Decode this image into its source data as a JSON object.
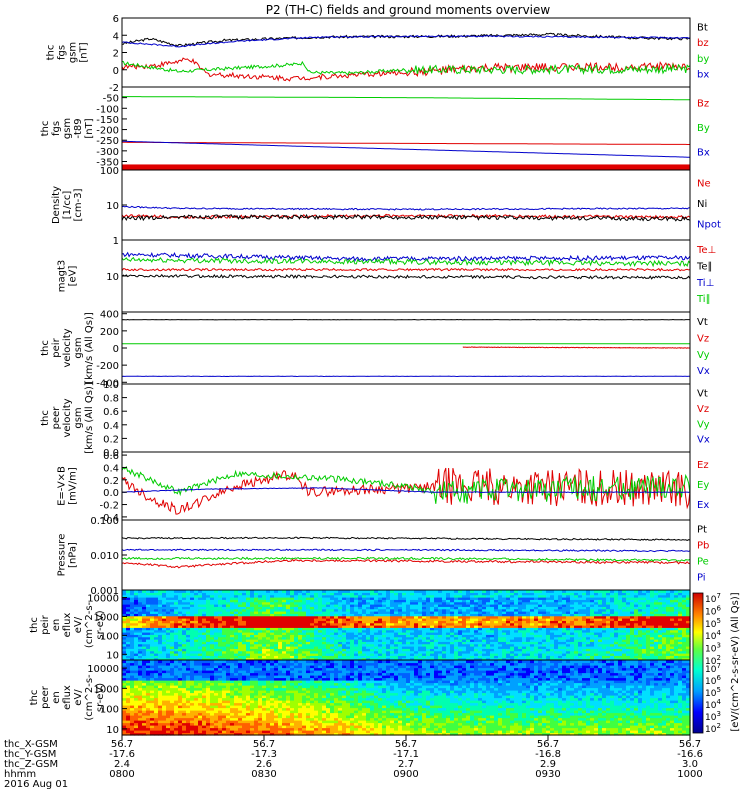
{
  "title": "P2 (TH-C) fields and ground moments overview",
  "colors": {
    "black": "#000000",
    "red": "#e00000",
    "green": "#00cc00",
    "blue": "#0000cc"
  },
  "chart_data": [
    {
      "type": "line",
      "panel": "fgs_gsm",
      "ylabel": [
        "thc",
        "fgs",
        "gsm",
        "[nT]"
      ],
      "yticks": [
        "6",
        "4",
        "2",
        "0",
        "-2"
      ],
      "ylim": [
        -2,
        6
      ],
      "series": [
        {
          "name": "Bt",
          "color": "black",
          "shape": [
            [
              0,
              3.0
            ],
            [
              0.05,
              3.6
            ],
            [
              0.1,
              2.8
            ],
            [
              0.18,
              3.4
            ],
            [
              0.35,
              3.8
            ],
            [
              0.6,
              3.9
            ],
            [
              0.75,
              4.1
            ],
            [
              0.9,
              3.7
            ],
            [
              1,
              3.6
            ]
          ],
          "noise": 0.15
        },
        {
          "name": "bz",
          "color": "red",
          "shape": [
            [
              0,
              0.3
            ],
            [
              0.06,
              0.5
            ],
            [
              0.12,
              1.2
            ],
            [
              0.15,
              -0.5
            ],
            [
              0.3,
              -1.0
            ],
            [
              0.5,
              -0.3
            ],
            [
              0.65,
              0.2
            ],
            [
              0.8,
              0.3
            ],
            [
              1,
              0.4
            ]
          ],
          "noise": 0.3,
          "noiseFrom": 0.5,
          "noiseAmp2": 0.5
        },
        {
          "name": "by",
          "color": "green",
          "shape": [
            [
              0,
              0.8
            ],
            [
              0.05,
              0.3
            ],
            [
              0.1,
              -0.2
            ],
            [
              0.2,
              0.2
            ],
            [
              0.3,
              0.6
            ],
            [
              0.32,
              0.8
            ],
            [
              0.33,
              -0.3
            ],
            [
              0.4,
              -0.4
            ],
            [
              0.5,
              0
            ],
            [
              1,
              0.1
            ]
          ],
          "noise": 0.2,
          "noiseFrom": 0.5,
          "noiseAmp2": 0.5
        },
        {
          "name": "bx",
          "color": "blue",
          "shape": [
            [
              0,
              3.2
            ],
            [
              0.1,
              2.7
            ],
            [
              0.2,
              3.3
            ],
            [
              0.35,
              3.8
            ],
            [
              0.6,
              3.9
            ],
            [
              1,
              3.7
            ]
          ],
          "noise": 0.08
        }
      ]
    },
    {
      "type": "line",
      "panel": "fgs_gsm_t89",
      "ylabel": [
        "thc",
        "fgs",
        "gsm",
        "-t89",
        "[nT]"
      ],
      "yticks": [
        "-50",
        "-100",
        "-150",
        "-200",
        "-250",
        "-300",
        "-350"
      ],
      "ylim": [
        -390,
        0
      ],
      "series": [
        {
          "name": "Bz",
          "color": "red",
          "shape": [
            [
              0,
              -260
            ],
            [
              1,
              -270
            ]
          ],
          "noise": 0
        },
        {
          "name": "By",
          "color": "green",
          "shape": [
            [
              0,
              -45
            ],
            [
              0.5,
              -50
            ],
            [
              1,
              -60
            ]
          ],
          "noise": 0
        },
        {
          "name": "Bx",
          "color": "blue",
          "shape": [
            [
              0,
              -255
            ],
            [
              0.4,
              -285
            ],
            [
              1,
              -330
            ]
          ],
          "noise": 0
        }
      ],
      "bar": {
        "color": "red",
        "y": -378
      }
    },
    {
      "type": "line",
      "panel": "density",
      "scale": "log",
      "ylabel": [
        "Density",
        "[1/cc]",
        "[cm-3]"
      ],
      "yticks": [
        "100",
        "10",
        "1"
      ],
      "ylim": [
        1,
        100
      ],
      "series": [
        {
          "name": "Ne",
          "color": "red",
          "shape": [
            [
              0,
              5
            ],
            [
              0.1,
              4.5
            ],
            [
              0.5,
              5
            ],
            [
              1,
              4.5
            ]
          ],
          "noise": 0.04
        },
        {
          "name": "Ni",
          "color": "black",
          "shape": [
            [
              0,
              4
            ],
            [
              0.1,
              4.6
            ],
            [
              0.5,
              4.5
            ],
            [
              1,
              4
            ]
          ],
          "noise": 0.06
        },
        {
          "name": "Npot",
          "color": "blue",
          "shape": [
            [
              0,
              9
            ],
            [
              0.1,
              8
            ],
            [
              0.5,
              7.5
            ],
            [
              1,
              8
            ]
          ],
          "noise": 0.02
        }
      ]
    },
    {
      "type": "line",
      "panel": "temperature",
      "scale": "log",
      "ylabel": [
        "magt3",
        "[eV]"
      ],
      "yticks": [
        "10"
      ],
      "ylim": [
        1,
        100
      ],
      "series": [
        {
          "name": "Te⊥",
          "color": "red",
          "shape": [
            [
              0,
              15
            ],
            [
              1,
              15
            ]
          ],
          "noise": 0.03
        },
        {
          "name": "Te∥",
          "color": "black",
          "shape": [
            [
              0,
              10
            ],
            [
              1,
              9
            ]
          ],
          "noise": 0.04
        },
        {
          "name": "Ti⊥",
          "color": "blue",
          "shape": [
            [
              0,
              40
            ],
            [
              0.4,
              30
            ],
            [
              1,
              32
            ]
          ],
          "noise": 0.06
        },
        {
          "name": "Ti∥",
          "color": "green",
          "shape": [
            [
              0,
              28
            ],
            [
              0.4,
              25
            ],
            [
              1,
              22
            ]
          ],
          "noise": 0.07
        }
      ]
    },
    {
      "type": "line",
      "panel": "peir_velocity",
      "ylabel": [
        "thc",
        "peir",
        "velocity",
        "gsm",
        "[km/s (All Qs)]"
      ],
      "yticks": [
        "400",
        "200",
        "0",
        "-200",
        "-400"
      ],
      "ylim": [
        -420,
        420
      ],
      "series": [
        {
          "name": "Vt",
          "color": "black",
          "shape": [
            [
              0,
              330
            ],
            [
              1,
              330
            ]
          ],
          "noise": 2
        },
        {
          "name": "Vz",
          "color": "red",
          "shape": [
            [
              0.6,
              10
            ],
            [
              1,
              0
            ]
          ],
          "noise": 3
        },
        {
          "name": "Vy",
          "color": "green",
          "shape": [
            [
              0,
              50
            ],
            [
              1,
              50
            ]
          ],
          "noise": 0
        },
        {
          "name": "Vx",
          "color": "blue",
          "shape": [
            [
              0,
              -330
            ],
            [
              1,
              -330
            ]
          ],
          "noise": 2
        }
      ]
    },
    {
      "type": "line",
      "panel": "peer_velocity",
      "ylabel": [
        "thc",
        "peer",
        "velocity",
        "gsm",
        "[km/s (All Qs)]"
      ],
      "yticks": [
        "1.0",
        "0.8",
        "0.6",
        "0.4",
        "0.2",
        "0.0"
      ],
      "ylim": [
        0,
        1
      ],
      "series": [
        {
          "name": "Vt",
          "color": "black"
        },
        {
          "name": "Vz",
          "color": "red"
        },
        {
          "name": "Vy",
          "color": "green"
        },
        {
          "name": "Vx",
          "color": "blue"
        }
      ]
    },
    {
      "type": "line",
      "panel": "efield",
      "ylabel": [
        "E=-V×B",
        "[mV/m]"
      ],
      "yticks": [
        "0.6",
        "0.4",
        "0.2",
        "0.0",
        "-0.2",
        "-0.4"
      ],
      "ylim": [
        -0.45,
        0.65
      ],
      "series": [
        {
          "name": "Ez",
          "color": "red",
          "shape": [
            [
              0,
              0.2
            ],
            [
              0.05,
              -0.1
            ],
            [
              0.1,
              -0.3
            ],
            [
              0.2,
              0.1
            ],
            [
              0.3,
              0.3
            ],
            [
              0.33,
              0.0
            ],
            [
              0.45,
              0.05
            ],
            [
              0.5,
              0.05
            ],
            [
              0.55,
              0.1
            ],
            [
              1,
              0.05
            ]
          ],
          "noise": 0.08,
          "noiseFrom": 0.55,
          "noiseAmp2": 0.3
        },
        {
          "name": "Ey",
          "color": "green",
          "shape": [
            [
              0,
              0.4
            ],
            [
              0.05,
              0.2
            ],
            [
              0.1,
              0.0
            ],
            [
              0.2,
              0.3
            ],
            [
              0.3,
              0.25
            ],
            [
              0.4,
              0.2
            ],
            [
              0.5,
              0.1
            ],
            [
              0.55,
              0.0
            ],
            [
              1,
              0.1
            ]
          ],
          "noise": 0.05,
          "noiseFrom": 0.55,
          "noiseAmp2": 0.2
        },
        {
          "name": "Ex",
          "color": "blue",
          "shape": [
            [
              0,
              0.0
            ],
            [
              0.15,
              0.05
            ],
            [
              0.35,
              0.07
            ],
            [
              0.55,
              0.0
            ],
            [
              1,
              0.0
            ]
          ],
          "noise": 0.005
        }
      ]
    },
    {
      "type": "line",
      "panel": "pressure",
      "scale": "log",
      "ylabel": [
        "Pressure",
        "[nPa]"
      ],
      "yticks": [
        "0.100",
        "0.010",
        "0.001"
      ],
      "ylim": [
        0.001,
        0.1
      ],
      "series": [
        {
          "name": "Pt",
          "color": "black",
          "shape": [
            [
              0,
              0.03
            ],
            [
              0.3,
              0.031
            ],
            [
              1,
              0.027
            ]
          ],
          "noise": 0.02
        },
        {
          "name": "Pb",
          "color": "red",
          "shape": [
            [
              0,
              0.006
            ],
            [
              0.1,
              0.0045
            ],
            [
              0.3,
              0.007
            ],
            [
              1,
              0.006
            ]
          ],
          "noise": 0.03
        },
        {
          "name": "Pe",
          "color": "green",
          "shape": [
            [
              0,
              0.008
            ],
            [
              0.5,
              0.008
            ],
            [
              1,
              0.007
            ]
          ],
          "noise": 0.03
        },
        {
          "name": "Pi",
          "color": "blue",
          "shape": [
            [
              0,
              0.014
            ],
            [
              0.5,
              0.014
            ],
            [
              1,
              0.013
            ]
          ],
          "noise": 0.02
        }
      ]
    },
    {
      "type": "heatmap",
      "panel": "peir_en_eflux",
      "scale": "log",
      "ylabel": [
        "thc",
        "peir",
        "en",
        "eflux",
        "eV/",
        "(cm^2-s-",
        "sr-eV)"
      ],
      "yticks": [
        "10000",
        "1000",
        "100",
        "10"
      ],
      "ylim": [
        5,
        25000
      ],
      "profile": [
        [
          0,
          3
        ],
        [
          0.08,
          4.5
        ],
        [
          0.18,
          5.8
        ],
        [
          0.25,
          7
        ],
        [
          0.3,
          6.5
        ],
        [
          0.4,
          4.5
        ],
        [
          0.6,
          4
        ],
        [
          0.8,
          4.5
        ],
        [
          1,
          6.5
        ]
      ]
    },
    {
      "type": "heatmap",
      "panel": "peer_en_eflux",
      "scale": "log",
      "ylabel": [
        "thc",
        "peer",
        "en",
        "eflux",
        "eV/",
        "(cm^2-s-",
        "sr-eV)"
      ],
      "yticks": [
        "10000",
        "1000",
        "100",
        "10"
      ],
      "ylim": [
        5,
        25000
      ],
      "profile": [
        [
          0,
          7
        ],
        [
          0.1,
          7
        ],
        [
          0.25,
          6
        ],
        [
          0.38,
          5
        ],
        [
          0.5,
          3.5
        ],
        [
          0.65,
          3
        ],
        [
          1,
          3
        ]
      ]
    }
  ],
  "colorbar": {
    "label": "[eV/(cm^2-s-sr-eV) (All Qs)]",
    "ticks": [
      "10^7",
      "10^6",
      "10^5",
      "10^4",
      "10^3",
      "10^2"
    ]
  },
  "xaxis": {
    "rows": [
      {
        "label": "thc_X-GSM",
        "values": [
          "56.7",
          "56.7",
          "56.7",
          "56.7",
          "56.7"
        ]
      },
      {
        "label": "thc_Y-GSM",
        "values": [
          "-17.6",
          "-17.3",
          "-17.1",
          "-16.8",
          "-16.6"
        ]
      },
      {
        "label": "thc_Z-GSM",
        "values": [
          "2.4",
          "2.6",
          "2.7",
          "2.9",
          "3.0"
        ]
      },
      {
        "label": "hhmm",
        "values": [
          "0800",
          "0830",
          "0900",
          "0930",
          "1000"
        ]
      }
    ],
    "date": "2016 Aug 01"
  }
}
